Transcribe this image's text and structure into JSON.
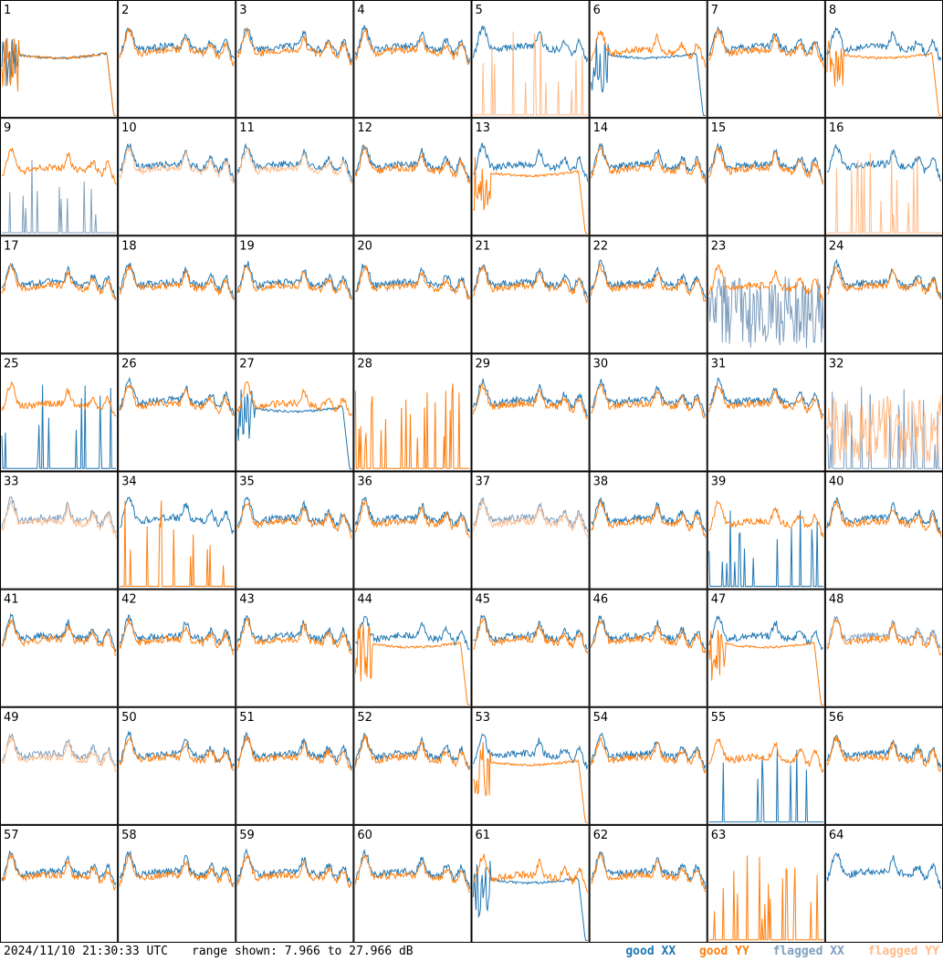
{
  "footer": {
    "timestamp": "2024/11/10 21:30:33 UTC",
    "range_text": "range shown: 7.966 to 27.966 dB"
  },
  "legend": {
    "good_xx": "good XX",
    "good_yy": "good YY",
    "flagged_xx": "flagged XX",
    "flagged_yy": "flagged YY"
  },
  "colors": {
    "good_xx": "#1f77b4",
    "good_yy": "#ff7f0e",
    "flagged_xx": "#7f9fbf",
    "flagged_yy": "#ffbb88"
  },
  "chart_data": {
    "type": "line",
    "rows": 8,
    "cols": 8,
    "ylim": [
      7.966,
      27.966
    ],
    "y_unit": "dB",
    "panels": [
      {
        "id": "1",
        "xx": "collapse",
        "yy": "collapse",
        "xx_flag": false,
        "yy_flag": false
      },
      {
        "id": "2",
        "xx": "normal",
        "yy": "normal",
        "xx_flag": false,
        "yy_flag": false
      },
      {
        "id": "3",
        "xx": "normal",
        "yy": "normal",
        "xx_flag": false,
        "yy_flag": false
      },
      {
        "id": "4",
        "xx": "normal",
        "yy": "normal",
        "xx_flag": false,
        "yy_flag": false
      },
      {
        "id": "5",
        "xx": "normal",
        "yy": "spikes",
        "xx_flag": false,
        "yy_flag": true
      },
      {
        "id": "6",
        "xx": "collapse",
        "yy": "normal",
        "xx_flag": false,
        "yy_flag": false
      },
      {
        "id": "7",
        "xx": "normal",
        "yy": "normal",
        "xx_flag": false,
        "yy_flag": false
      },
      {
        "id": "8",
        "xx": "normal",
        "yy": "collapse",
        "xx_flag": false,
        "yy_flag": false
      },
      {
        "id": "9",
        "xx": "spikes",
        "yy": "normal",
        "xx_flag": true,
        "yy_flag": false
      },
      {
        "id": "10",
        "xx": "normal",
        "yy": "normal",
        "xx_flag": false,
        "yy_flag": true
      },
      {
        "id": "11",
        "xx": "normal",
        "yy": "normal",
        "xx_flag": false,
        "yy_flag": true
      },
      {
        "id": "12",
        "xx": "normal",
        "yy": "normal",
        "xx_flag": false,
        "yy_flag": false
      },
      {
        "id": "13",
        "xx": "normal",
        "yy": "collapse",
        "xx_flag": false,
        "yy_flag": false
      },
      {
        "id": "14",
        "xx": "normal",
        "yy": "normal",
        "xx_flag": false,
        "yy_flag": false
      },
      {
        "id": "15",
        "xx": "normal",
        "yy": "normal",
        "xx_flag": false,
        "yy_flag": false
      },
      {
        "id": "16",
        "xx": "normal",
        "yy": "spikes",
        "xx_flag": false,
        "yy_flag": true
      },
      {
        "id": "17",
        "xx": "normal",
        "yy": "normal",
        "xx_flag": false,
        "yy_flag": false
      },
      {
        "id": "18",
        "xx": "normal",
        "yy": "normal",
        "xx_flag": false,
        "yy_flag": false
      },
      {
        "id": "19",
        "xx": "normal",
        "yy": "normal",
        "xx_flag": false,
        "yy_flag": false
      },
      {
        "id": "20",
        "xx": "normal",
        "yy": "normal",
        "xx_flag": false,
        "yy_flag": false
      },
      {
        "id": "21",
        "xx": "normal",
        "yy": "normal",
        "xx_flag": false,
        "yy_flag": false
      },
      {
        "id": "22",
        "xx": "normal",
        "yy": "normal",
        "xx_flag": false,
        "yy_flag": false
      },
      {
        "id": "23",
        "xx": "noisy",
        "yy": "normal",
        "xx_flag": true,
        "yy_flag": false
      },
      {
        "id": "24",
        "xx": "normal",
        "yy": "normal",
        "xx_flag": false,
        "yy_flag": false
      },
      {
        "id": "25",
        "xx": "spikes",
        "yy": "normal",
        "xx_flag": false,
        "yy_flag": false
      },
      {
        "id": "26",
        "xx": "normal",
        "yy": "normal",
        "xx_flag": false,
        "yy_flag": false
      },
      {
        "id": "27",
        "xx": "collapse",
        "yy": "normal",
        "xx_flag": false,
        "yy_flag": false
      },
      {
        "id": "28",
        "xx": "none",
        "yy": "spikes",
        "xx_flag": false,
        "yy_flag": false
      },
      {
        "id": "29",
        "xx": "normal",
        "yy": "normal",
        "xx_flag": false,
        "yy_flag": false
      },
      {
        "id": "30",
        "xx": "normal",
        "yy": "normal",
        "xx_flag": false,
        "yy_flag": false
      },
      {
        "id": "31",
        "xx": "normal",
        "yy": "normal",
        "xx_flag": false,
        "yy_flag": false
      },
      {
        "id": "32",
        "xx": "spikes",
        "yy": "noisy",
        "xx_flag": true,
        "yy_flag": true
      },
      {
        "id": "33",
        "xx": "normal",
        "yy": "normal",
        "xx_flag": true,
        "yy_flag": true
      },
      {
        "id": "34",
        "xx": "normal",
        "yy": "spikes",
        "xx_flag": false,
        "yy_flag": false
      },
      {
        "id": "35",
        "xx": "normal",
        "yy": "normal",
        "xx_flag": false,
        "yy_flag": false
      },
      {
        "id": "36",
        "xx": "normal",
        "yy": "normal",
        "xx_flag": false,
        "yy_flag": false
      },
      {
        "id": "37",
        "xx": "normal",
        "yy": "normal",
        "xx_flag": true,
        "yy_flag": true
      },
      {
        "id": "38",
        "xx": "normal",
        "yy": "normal",
        "xx_flag": false,
        "yy_flag": false
      },
      {
        "id": "39",
        "xx": "spikes",
        "yy": "normal",
        "xx_flag": false,
        "yy_flag": false
      },
      {
        "id": "40",
        "xx": "normal",
        "yy": "normal",
        "xx_flag": false,
        "yy_flag": false
      },
      {
        "id": "41",
        "xx": "normal",
        "yy": "normal",
        "xx_flag": false,
        "yy_flag": false
      },
      {
        "id": "42",
        "xx": "normal",
        "yy": "normal",
        "xx_flag": false,
        "yy_flag": false
      },
      {
        "id": "43",
        "xx": "normal",
        "yy": "normal",
        "xx_flag": false,
        "yy_flag": false
      },
      {
        "id": "44",
        "xx": "normal",
        "yy": "collapse",
        "xx_flag": false,
        "yy_flag": false
      },
      {
        "id": "45",
        "xx": "normal",
        "yy": "normal",
        "xx_flag": false,
        "yy_flag": false
      },
      {
        "id": "46",
        "xx": "normal",
        "yy": "normal",
        "xx_flag": false,
        "yy_flag": false
      },
      {
        "id": "47",
        "xx": "normal",
        "yy": "collapse",
        "xx_flag": false,
        "yy_flag": false
      },
      {
        "id": "48",
        "xx": "normal",
        "yy": "normal",
        "xx_flag": true,
        "yy_flag": false
      },
      {
        "id": "49",
        "xx": "normal",
        "yy": "normal",
        "xx_flag": true,
        "yy_flag": true
      },
      {
        "id": "50",
        "xx": "normal",
        "yy": "normal",
        "xx_flag": false,
        "yy_flag": false
      },
      {
        "id": "51",
        "xx": "normal",
        "yy": "normal",
        "xx_flag": false,
        "yy_flag": false
      },
      {
        "id": "52",
        "xx": "normal",
        "yy": "normal",
        "xx_flag": false,
        "yy_flag": false
      },
      {
        "id": "53",
        "xx": "normal",
        "yy": "collapse",
        "xx_flag": false,
        "yy_flag": false
      },
      {
        "id": "54",
        "xx": "normal",
        "yy": "normal",
        "xx_flag": false,
        "yy_flag": false
      },
      {
        "id": "55",
        "xx": "spikes",
        "yy": "normal",
        "xx_flag": false,
        "yy_flag": false
      },
      {
        "id": "56",
        "xx": "normal",
        "yy": "normal",
        "xx_flag": false,
        "yy_flag": false
      },
      {
        "id": "57",
        "xx": "normal",
        "yy": "normal",
        "xx_flag": false,
        "yy_flag": false
      },
      {
        "id": "58",
        "xx": "normal",
        "yy": "normal",
        "xx_flag": false,
        "yy_flag": false
      },
      {
        "id": "59",
        "xx": "normal",
        "yy": "normal",
        "xx_flag": false,
        "yy_flag": false
      },
      {
        "id": "60",
        "xx": "normal",
        "yy": "normal",
        "xx_flag": false,
        "yy_flag": false
      },
      {
        "id": "61",
        "xx": "collapse",
        "yy": "normal",
        "xx_flag": false,
        "yy_flag": false
      },
      {
        "id": "62",
        "xx": "normal",
        "yy": "normal",
        "xx_flag": false,
        "yy_flag": false
      },
      {
        "id": "63",
        "xx": "none",
        "yy": "spikes",
        "xx_flag": false,
        "yy_flag": false
      },
      {
        "id": "64",
        "xx": "normal",
        "yy": "none",
        "xx_flag": false,
        "yy_flag": false
      }
    ]
  }
}
